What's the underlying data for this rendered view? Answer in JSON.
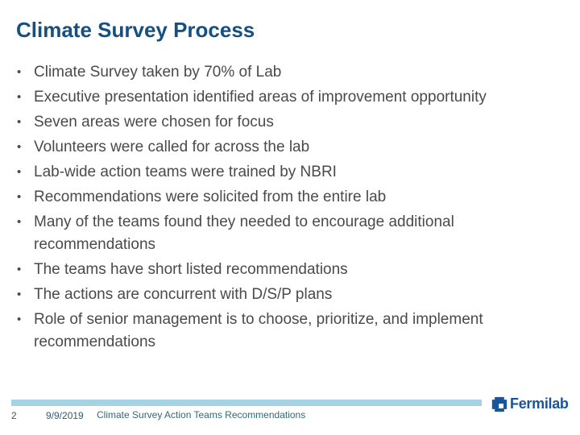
{
  "slide": {
    "title": "Climate Survey Process",
    "bullets": [
      "Climate Survey taken by 70% of Lab",
      "Executive presentation identified areas of improvement opportunity",
      "Seven areas were chosen for focus",
      "Volunteers were called for across the lab",
      "Lab-wide action teams were trained by NBRI",
      "Recommendations were solicited from the entire lab",
      "Many of the teams found they needed to encourage additional recommendations",
      "The teams have short listed recommendations",
      "The actions are concurrent with D/S/P plans",
      "Role of senior management is to choose, prioritize, and implement recommendations"
    ]
  },
  "footer": {
    "slide_number": "2",
    "date": "9/9/2019",
    "text": "Climate Survey Action Teams Recommendations",
    "logo_text": "Fermilab",
    "logo_icon": "fermilab-pinwheel-icon"
  },
  "colors": {
    "title_blue": "#17507F",
    "body_text": "#4A4A4A",
    "footer_bar_blue": "#A5D3E3",
    "footer_text_teal": "#2E6B7C",
    "footer_meta": "#35596E",
    "logo_blue": "#1A549B"
  }
}
